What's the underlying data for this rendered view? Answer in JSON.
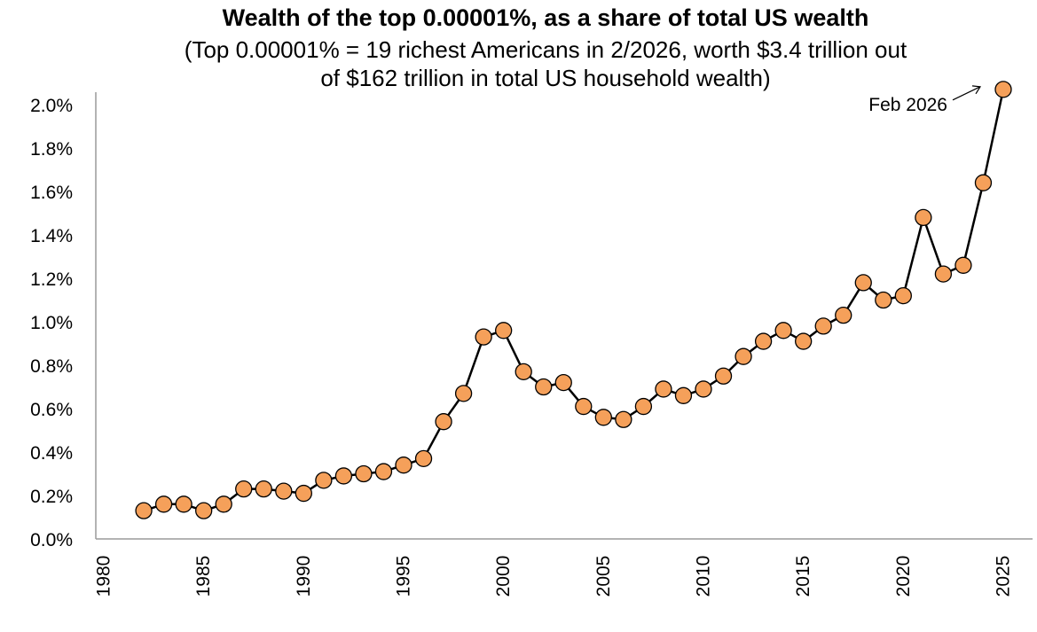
{
  "chart_data": {
    "type": "line",
    "title": "Wealth of the top 0.00001%, as a share of total US wealth",
    "subtitle_lines": [
      "(Top 0.00001% = 19 richest Americans in 2/2026, worth $3.4 trillion out",
      "of $162 trillion in total US household wealth)"
    ],
    "xlabel": "",
    "ylabel": "",
    "xlim": [
      1980,
      2025
    ],
    "ylim": [
      0.0,
      2.0
    ],
    "x_ticks": [
      "1980",
      "1985",
      "1990",
      "1995",
      "2000",
      "2005",
      "2010",
      "2015",
      "2020",
      "2025"
    ],
    "y_ticks": [
      "0.0%",
      "0.2%",
      "0.4%",
      "0.6%",
      "0.8%",
      "1.0%",
      "1.2%",
      "1.4%",
      "1.6%",
      "1.8%",
      "2.0%"
    ],
    "grid": false,
    "legend": false,
    "marker_color": "#F5A05A",
    "line_color": "#000000",
    "annotation": {
      "text": "Feb 2026",
      "x": 2025,
      "y": 2.07
    },
    "series": [
      {
        "x": [
          1982,
          1983,
          1984,
          1985,
          1986,
          1987,
          1988,
          1989,
          1990,
          1991,
          1992,
          1993,
          1994,
          1995,
          1996,
          1997,
          1998,
          1999,
          2000,
          2001,
          2002,
          2003,
          2004,
          2005,
          2006,
          2007,
          2008,
          2009,
          2010,
          2011,
          2012,
          2013,
          2014,
          2015,
          2016,
          2017,
          2018,
          2019,
          2020,
          2021,
          2022,
          2023,
          2024,
          2025
        ],
        "y": [
          0.13,
          0.16,
          0.16,
          0.13,
          0.16,
          0.23,
          0.23,
          0.22,
          0.21,
          0.27,
          0.29,
          0.3,
          0.31,
          0.34,
          0.37,
          0.54,
          0.67,
          0.93,
          0.96,
          0.77,
          0.7,
          0.72,
          0.61,
          0.56,
          0.55,
          0.61,
          0.69,
          0.66,
          0.69,
          0.75,
          0.84,
          0.91,
          0.96,
          0.91,
          0.98,
          1.03,
          1.18,
          1.1,
          1.12,
          1.48,
          1.22,
          1.26,
          1.64,
          2.07
        ]
      }
    ]
  }
}
